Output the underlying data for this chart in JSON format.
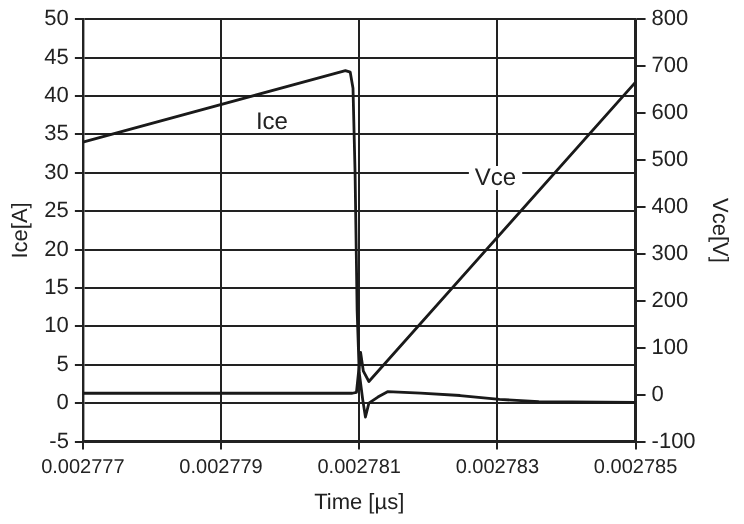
{
  "chart_data": {
    "type": "line",
    "xlabel": "Time [µs]",
    "ylabel": "Ice[A]",
    "y2label": "Vce[V]",
    "xlim": [
      0.002777,
      0.002785
    ],
    "xticks": [
      0.002777,
      0.002779,
      0.002781,
      0.002783,
      0.002785
    ],
    "ylim": [
      -5,
      50
    ],
    "yticks": [
      -5,
      0,
      5,
      10,
      15,
      20,
      25,
      30,
      35,
      40,
      45,
      50
    ],
    "y2lim": [
      -100,
      800
    ],
    "y2ticks": [
      -100,
      0,
      100,
      200,
      300,
      400,
      500,
      600,
      700,
      800
    ],
    "grid": true,
    "legend": false,
    "marker": "none",
    "line_style": "solid",
    "series": [
      {
        "name": "Ice",
        "color": "#1a1a1a",
        "x": [
          0.002777,
          0.0027808,
          0.00278087,
          0.00278091,
          0.00278094,
          0.00278097,
          0.002781,
          0.00278105,
          0.00278109,
          0.00278114,
          0.00278127,
          0.00278141,
          0.00278189,
          0.00278246,
          0.00278303,
          0.0027836,
          0.002785
        ],
        "values": [
          34,
          43.3,
          43.1,
          41,
          30,
          12,
          4,
          0.5,
          -1.8,
          0,
          0.8,
          1.5,
          1.3,
          1,
          0.5,
          0.2,
          0.1
        ]
      },
      {
        "name": "Vce",
        "color": "#1a1a1a",
        "axis": "y2",
        "x": [
          0.002777,
          0.0027809,
          0.00278096,
          0.00278102,
          0.00278106,
          0.00278114,
          0.002785
        ],
        "values": [
          3,
          3,
          5,
          90,
          50,
          28,
          666
        ]
      }
    ]
  }
}
